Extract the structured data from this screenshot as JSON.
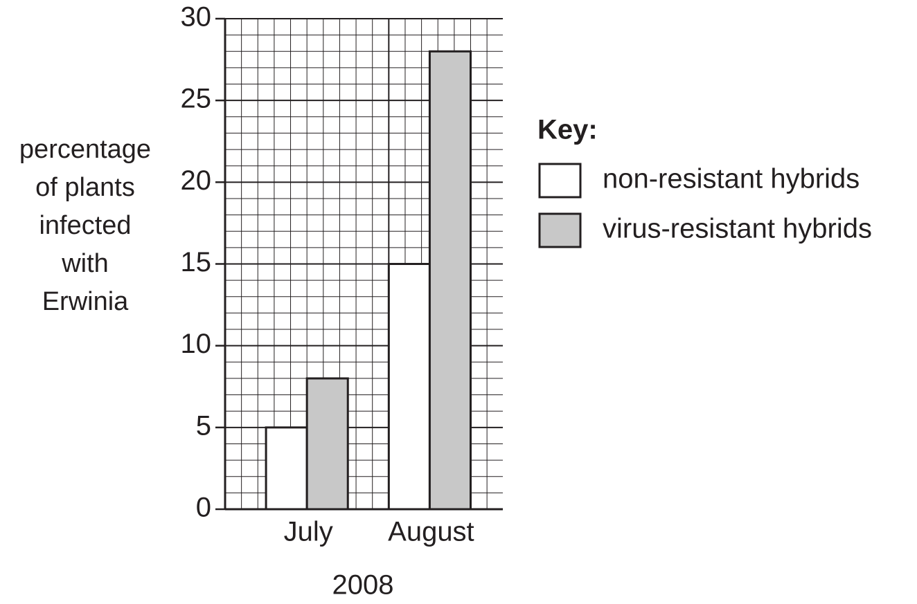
{
  "chart_data": {
    "type": "bar",
    "ylabel": [
      "percentage",
      "of plants",
      "infected",
      "with",
      "Erwinia"
    ],
    "xlabel": "2008",
    "categories": [
      "July",
      "August"
    ],
    "series": [
      {
        "name": "non-resistant hybrids",
        "color": "#ffffff",
        "values": [
          5,
          15
        ]
      },
      {
        "name": "virus-resistant hybrids",
        "color": "#c8c8c8",
        "values": [
          8,
          28
        ]
      }
    ],
    "ylim": [
      0,
      30
    ],
    "yticks": [
      0,
      5,
      10,
      15,
      20,
      25,
      30
    ],
    "grid": true,
    "legend_title": "Key:",
    "legend": "right"
  }
}
